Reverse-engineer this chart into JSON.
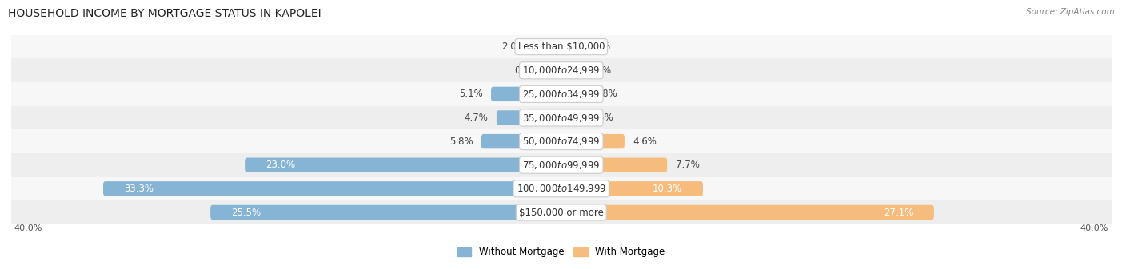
{
  "title": "HOUSEHOLD INCOME BY MORTGAGE STATUS IN KAPOLEI",
  "source": "Source: ZipAtlas.com",
  "categories": [
    "Less than $10,000",
    "$10,000 to $24,999",
    "$25,000 to $34,999",
    "$35,000 to $49,999",
    "$50,000 to $74,999",
    "$75,000 to $99,999",
    "$100,000 to $149,999",
    "$150,000 or more"
  ],
  "without_mortgage": [
    2.0,
    0.61,
    5.1,
    4.7,
    5.8,
    23.0,
    33.3,
    25.5
  ],
  "with_mortgage": [
    0.82,
    0.86,
    1.8,
    1.5,
    4.6,
    7.7,
    10.3,
    27.1
  ],
  "axis_max": 40.0,
  "color_without": "#85b4d4",
  "color_with": "#f5bc7e",
  "row_colors": [
    "#f7f7f7",
    "#eeeeee"
  ],
  "title_fontsize": 10,
  "label_fontsize": 8.5,
  "cat_fontsize": 8.5,
  "tick_fontsize": 8,
  "legend_fontsize": 8.5,
  "bar_height": 0.62,
  "inside_label_threshold": 10.0
}
